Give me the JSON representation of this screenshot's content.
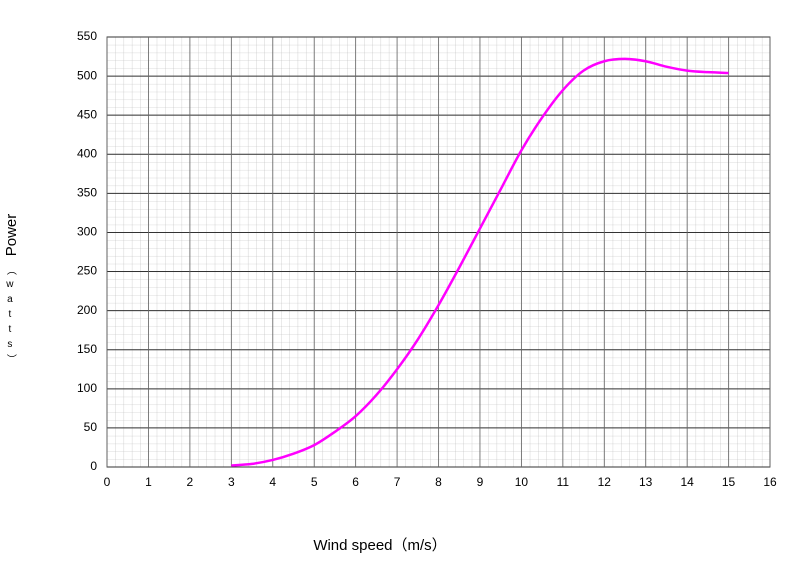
{
  "chart_data": {
    "type": "line",
    "x_label": "Wind speed（m/s）",
    "y_label": "Power",
    "y_unit": "（watts）",
    "xlim": [
      0,
      16
    ],
    "xticks": [
      0,
      1,
      2,
      3,
      4,
      5,
      6,
      7,
      8,
      9,
      10,
      11,
      12,
      13,
      14,
      15,
      16
    ],
    "ylim": [
      0,
      550
    ],
    "yticks": [
      0,
      50,
      100,
      150,
      200,
      250,
      300,
      350,
      400,
      450,
      500,
      550
    ],
    "grid": true,
    "minor_grid": true,
    "series": [
      {
        "color": "#ff00ff",
        "x": [
          3,
          3.5,
          4,
          4.5,
          5,
          5.5,
          6,
          6.5,
          7,
          7.5,
          8,
          8.5,
          9,
          9.5,
          10,
          10.5,
          11,
          11.5,
          12,
          12.5,
          13,
          13.5,
          14,
          14.5,
          15
        ],
        "values": [
          2,
          4,
          9,
          17,
          28,
          45,
          65,
          92,
          125,
          163,
          207,
          255,
          305,
          355,
          405,
          447,
          482,
          507,
          519,
          522,
          519,
          512,
          507,
          505,
          504
        ]
      }
    ]
  }
}
